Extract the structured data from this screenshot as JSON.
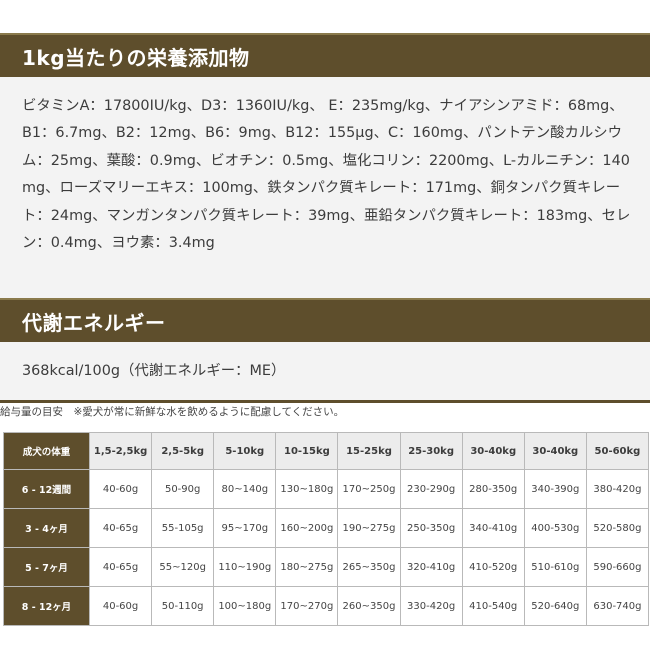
{
  "nutrients": {
    "title": "1kg当たりの栄養添加物",
    "body": "ビタミンA：17800IU/kg、D3：1360IU/kg、 E：235mg/kg、ナイアシンアミド：68mg、B1：6.7mg、B2：12mg、B6：9mg、B12：155μg、C：160mg、パントテン酸カルシウム：25mg、葉酸：0.9mg、ビオチン：0.5mg、塩化コリン：2200mg、L-カルニチン：140mg、ローズマリーエキス：100mg、鉄タンパク質キレート：171mg、銅タンパク質キレート：24mg、マンガンタンパク質キレート：39mg、亜鉛タンパク質キレート：183mg、セレン：0.4mg、ヨウ素：3.4mg"
  },
  "energy": {
    "title": "代謝エネルギー",
    "body": "368kcal/100g（代謝エネルギー：ME）"
  },
  "feeding_note": "給与量の目安　※愛犬が常に新鮮な水を飲めるように配慮してください。",
  "feeding_table": {
    "corner": "成犬の体重",
    "weights": [
      "1,5-2,5kg",
      "2,5-5kg",
      "5-10kg",
      "10-15kg",
      "15-25kg",
      "25-30kg",
      "30-40kg",
      "30-40kg",
      "50-60kg"
    ],
    "rows": [
      {
        "age": "6 - 12週間",
        "values": [
          "40-60g",
          "50-90g",
          "80~140g",
          "130~180g",
          "170~250g",
          "230-290g",
          "280-350g",
          "340-390g",
          "380-420g"
        ]
      },
      {
        "age": "3 - 4ヶ月",
        "values": [
          "40-65g",
          "55-105g",
          "95~170g",
          "160~200g",
          "190~275g",
          "250-350g",
          "340-410g",
          "400-530g",
          "520-580g"
        ]
      },
      {
        "age": "5 - 7ヶ月",
        "values": [
          "40-65g",
          "55~120g",
          "110~190g",
          "180~275g",
          "265~350g",
          "320-410g",
          "410-520g",
          "510-610g",
          "590-660g"
        ]
      },
      {
        "age": "8 - 12ヶ月",
        "values": [
          "40-60g",
          "50-110g",
          "100~180g",
          "170~270g",
          "260~350g",
          "330-420g",
          "410-540g",
          "520-640g",
          "630-740g"
        ]
      }
    ]
  },
  "colors": {
    "header_bar": "#5e4e2c",
    "panel_bg": "#f3f3f3",
    "table_head_bg": "#ececec"
  }
}
